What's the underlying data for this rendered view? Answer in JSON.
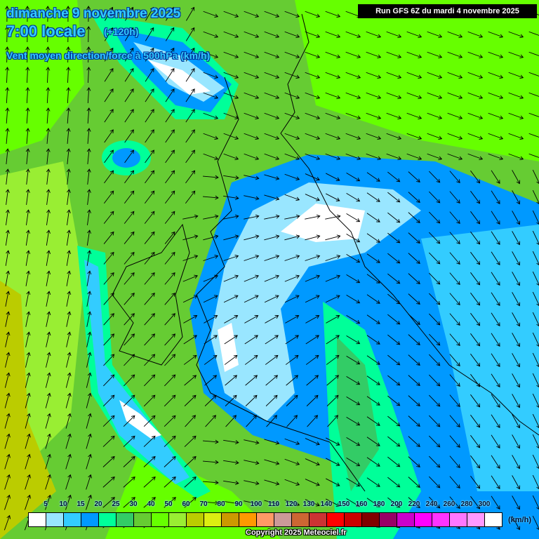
{
  "header": {
    "date": "dimanche 9 novembre 2025",
    "hour": "7:00 locale",
    "lead": "(+120h)",
    "parameter": "Vent moyen direction/force à 500hPa (km/h)",
    "run": "Run GFS 6Z du mardi 4 novembre 2025"
  },
  "legend": {
    "labels": [
      "5",
      "10",
      "15",
      "20",
      "25",
      "30",
      "40",
      "50",
      "60",
      "70",
      "80",
      "90",
      "100",
      "110",
      "120",
      "130",
      "140",
      "150",
      "160",
      "180",
      "200",
      "220",
      "240",
      "260",
      "280",
      "300",
      "320"
    ],
    "unit": "(km/h)",
    "colors": [
      "#ffffff",
      "#99e6ff",
      "#33ccff",
      "#0099ff",
      "#00ff99",
      "#33cc66",
      "#66cc33",
      "#66ff00",
      "#99ee33",
      "#bbcc00",
      "#ddee11",
      "#cc9900",
      "#ff9900",
      "#ff9966",
      "#cc9999",
      "#cc6633",
      "#cc3333",
      "#ff0000",
      "#cc0000",
      "#800000",
      "#990066",
      "#cc00cc",
      "#ff00ff",
      "#ff33ff",
      "#ff77ff",
      "#ff99ff",
      "#ffffff"
    ]
  },
  "copyright": "Copyright 2025 Meteociel.fr"
}
